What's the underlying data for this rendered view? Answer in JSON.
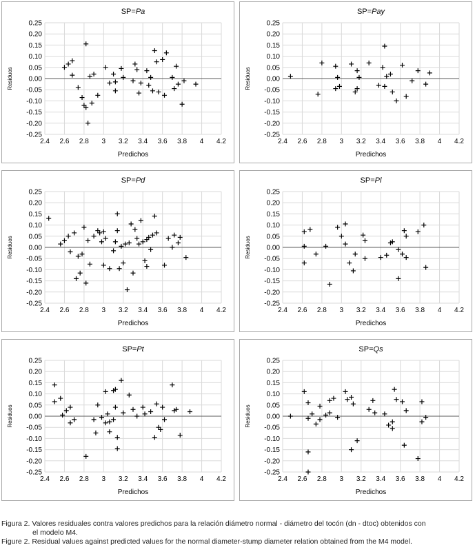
{
  "chart_data": [
    {
      "type": "scatter",
      "title_prefix": "SP=",
      "title_species": "Pa",
      "xlabel": "Predichos",
      "ylabel": "Residuos",
      "xlim": [
        2.4,
        4.2
      ],
      "ylim": [
        -0.25,
        0.25
      ],
      "xticks": [
        "2.4",
        "2.6",
        "2.8",
        "3",
        "3.2",
        "3.4",
        "3.6",
        "3.8",
        "4",
        "4.2"
      ],
      "yticks": [
        "0.25",
        "0.20",
        "0.15",
        "0.10",
        "0.05",
        "0.00",
        "-0.05",
        "-0.10",
        "-0.15",
        "-0.20",
        "-0.25"
      ],
      "points": [
        [
          2.6,
          0.05
        ],
        [
          2.64,
          0.065
        ],
        [
          2.68,
          0.08
        ],
        [
          2.68,
          0.015
        ],
        [
          2.74,
          -0.04
        ],
        [
          2.78,
          -0.085
        ],
        [
          2.8,
          -0.12
        ],
        [
          2.82,
          0.155
        ],
        [
          2.82,
          -0.13
        ],
        [
          2.84,
          -0.2
        ],
        [
          2.86,
          0.01
        ],
        [
          2.88,
          -0.11
        ],
        [
          2.9,
          0.02
        ],
        [
          2.94,
          -0.075
        ],
        [
          3.02,
          0.05
        ],
        [
          3.06,
          -0.02
        ],
        [
          3.1,
          0.02
        ],
        [
          3.12,
          -0.015
        ],
        [
          3.12,
          -0.055
        ],
        [
          3.18,
          0.045
        ],
        [
          3.2,
          0.005
        ],
        [
          3.3,
          -0.01
        ],
        [
          3.32,
          0.065
        ],
        [
          3.34,
          0.04
        ],
        [
          3.36,
          -0.065
        ],
        [
          3.38,
          -0.02
        ],
        [
          3.44,
          0.035
        ],
        [
          3.46,
          -0.03
        ],
        [
          3.48,
          0.005
        ],
        [
          3.5,
          -0.055
        ],
        [
          3.52,
          0.125
        ],
        [
          3.54,
          0.075
        ],
        [
          3.56,
          -0.06
        ],
        [
          3.6,
          0.085
        ],
        [
          3.62,
          -0.075
        ],
        [
          3.64,
          0.115
        ],
        [
          3.7,
          0.005
        ],
        [
          3.72,
          -0.045
        ],
        [
          3.74,
          0.055
        ],
        [
          3.76,
          -0.025
        ],
        [
          3.8,
          -0.115
        ],
        [
          3.82,
          -0.01
        ],
        [
          3.94,
          -0.025
        ]
      ]
    },
    {
      "type": "scatter",
      "title_prefix": "SP=",
      "title_species": "Pay",
      "xlabel": "Predichos",
      "ylabel": "Residuos",
      "xlim": [
        2.4,
        4.2
      ],
      "ylim": [
        -0.25,
        0.25
      ],
      "xticks": [
        "2.4",
        "2.6",
        "2.8",
        "3",
        "3.2",
        "3.4",
        "3.6",
        "3.8",
        "4",
        "4.2"
      ],
      "yticks": [
        "0.25",
        "0.20",
        "0.15",
        "0.10",
        "0.05",
        "0.00",
        "-0.05",
        "-0.10",
        "-0.15",
        "-0.20",
        "-0.25"
      ],
      "points": [
        [
          2.48,
          0.01
        ],
        [
          2.76,
          -0.07
        ],
        [
          2.8,
          0.07
        ],
        [
          2.94,
          -0.045
        ],
        [
          2.94,
          0.055
        ],
        [
          2.96,
          0.005
        ],
        [
          2.98,
          -0.035
        ],
        [
          3.1,
          0.065
        ],
        [
          3.14,
          -0.06
        ],
        [
          3.16,
          -0.045
        ],
        [
          3.16,
          0.035
        ],
        [
          3.18,
          0.005
        ],
        [
          3.28,
          0.07
        ],
        [
          3.38,
          -0.03
        ],
        [
          3.42,
          0.05
        ],
        [
          3.44,
          0.145
        ],
        [
          3.44,
          -0.035
        ],
        [
          3.46,
          0.01
        ],
        [
          3.5,
          0.02
        ],
        [
          3.52,
          -0.06
        ],
        [
          3.56,
          -0.1
        ],
        [
          3.62,
          0.06
        ],
        [
          3.66,
          -0.08
        ],
        [
          3.72,
          -0.01
        ],
        [
          3.78,
          0.035
        ],
        [
          3.86,
          -0.025
        ],
        [
          3.9,
          0.025
        ]
      ]
    },
    {
      "type": "scatter",
      "title_prefix": "SP=",
      "title_species": "Pd",
      "xlabel": "Predichos",
      "ylabel": "Residuos",
      "xlim": [
        2.4,
        4.2
      ],
      "ylim": [
        -0.25,
        0.25
      ],
      "xticks": [
        "2.4",
        "2.6",
        "2.8",
        "3",
        "3.2",
        "3.4",
        "3.6",
        "3.8",
        "4",
        "4.2"
      ],
      "yticks": [
        "0.25",
        "0.20",
        "0.15",
        "0.10",
        "0.05",
        "0.00",
        "-0.05",
        "-0.10",
        "-0.15",
        "-0.20",
        "-0.25"
      ],
      "points": [
        [
          2.44,
          0.13
        ],
        [
          2.56,
          0.015
        ],
        [
          2.6,
          0.03
        ],
        [
          2.64,
          0.05
        ],
        [
          2.66,
          -0.02
        ],
        [
          2.7,
          0.065
        ],
        [
          2.72,
          -0.14
        ],
        [
          2.74,
          -0.04
        ],
        [
          2.76,
          -0.115
        ],
        [
          2.78,
          -0.03
        ],
        [
          2.8,
          0.09
        ],
        [
          2.82,
          -0.16
        ],
        [
          2.84,
          0.03
        ],
        [
          2.86,
          -0.075
        ],
        [
          2.9,
          0.05
        ],
        [
          2.94,
          0.075
        ],
        [
          2.96,
          0.065
        ],
        [
          3.0,
          0.07
        ],
        [
          2.98,
          0.025
        ],
        [
          3.0,
          -0.08
        ],
        [
          3.02,
          0.04
        ],
        [
          3.06,
          -0.095
        ],
        [
          3.1,
          -0.015
        ],
        [
          3.12,
          0.025
        ],
        [
          3.14,
          0.075
        ],
        [
          3.14,
          0.15
        ],
        [
          3.16,
          -0.095
        ],
        [
          3.18,
          0.005
        ],
        [
          3.2,
          -0.07
        ],
        [
          3.22,
          0.015
        ],
        [
          3.24,
          -0.19
        ],
        [
          3.26,
          0.02
        ],
        [
          3.28,
          0.105
        ],
        [
          3.3,
          -0.115
        ],
        [
          3.32,
          0.08
        ],
        [
          3.34,
          0.04
        ],
        [
          3.36,
          0.015
        ],
        [
          3.38,
          0.12
        ],
        [
          3.4,
          0.025
        ],
        [
          3.42,
          -0.06
        ],
        [
          3.44,
          0.035
        ],
        [
          3.44,
          -0.085
        ],
        [
          3.46,
          0.045
        ],
        [
          3.48,
          -0.01
        ],
        [
          3.5,
          0.055
        ],
        [
          3.52,
          0.14
        ],
        [
          3.54,
          0.065
        ],
        [
          3.62,
          -0.08
        ],
        [
          3.66,
          0.04
        ],
        [
          3.7,
          0.0
        ],
        [
          3.72,
          0.055
        ],
        [
          3.76,
          0.02
        ],
        [
          3.78,
          0.045
        ],
        [
          3.84,
          -0.045
        ]
      ]
    },
    {
      "type": "scatter",
      "title_prefix": "SP=",
      "title_species": "Pl",
      "xlabel": "Predichos",
      "ylabel": "Residuos",
      "xlim": [
        2.4,
        4.2
      ],
      "ylim": [
        -0.25,
        0.25
      ],
      "xticks": [
        "2.4",
        "2.6",
        "2.8",
        "3",
        "3.2",
        "3.4",
        "3.6",
        "3.8",
        "4",
        "4.2"
      ],
      "yticks": [
        "0.25",
        "0.20",
        "0.15",
        "0.10",
        "0.05",
        "0.00",
        "-0.05",
        "-0.10",
        "-0.15",
        "-0.20",
        "-0.25"
      ],
      "points": [
        [
          2.62,
          0.07
        ],
        [
          2.62,
          0.005
        ],
        [
          2.62,
          -0.07
        ],
        [
          2.68,
          0.08
        ],
        [
          2.74,
          -0.03
        ],
        [
          2.84,
          0.005
        ],
        [
          2.88,
          -0.165
        ],
        [
          2.96,
          0.09
        ],
        [
          3.0,
          0.05
        ],
        [
          3.04,
          0.105
        ],
        [
          3.04,
          0.015
        ],
        [
          3.08,
          -0.07
        ],
        [
          3.12,
          -0.105
        ],
        [
          3.14,
          -0.03
        ],
        [
          3.22,
          0.055
        ],
        [
          3.24,
          0.03
        ],
        [
          3.24,
          -0.05
        ],
        [
          3.4,
          -0.045
        ],
        [
          3.46,
          -0.035
        ],
        [
          3.5,
          0.02
        ],
        [
          3.52,
          0.025
        ],
        [
          3.58,
          -0.01
        ],
        [
          3.58,
          -0.14
        ],
        [
          3.62,
          -0.03
        ],
        [
          3.64,
          0.075
        ],
        [
          3.66,
          0.05
        ],
        [
          3.66,
          -0.045
        ],
        [
          3.78,
          0.07
        ],
        [
          3.84,
          0.1
        ],
        [
          3.86,
          -0.09
        ]
      ]
    },
    {
      "type": "scatter",
      "title_prefix": "SP=",
      "title_species": "Pt",
      "xlabel": "Predichos",
      "ylabel": "Residuos",
      "xlim": [
        2.4,
        4.2
      ],
      "ylim": [
        -0.25,
        0.25
      ],
      "xticks": [
        "2.4",
        "2.6",
        "2.8",
        "3",
        "3.2",
        "3.4",
        "3.6",
        "3.8",
        "4",
        "4.2"
      ],
      "yticks": [
        "0.25",
        "0.20",
        "0.15",
        "0.10",
        "0.05",
        "0.00",
        "-0.05",
        "-0.10",
        "-0.15",
        "-0.20",
        "-0.25"
      ],
      "points": [
        [
          2.5,
          0.14
        ],
        [
          2.5,
          0.065
        ],
        [
          2.56,
          0.08
        ],
        [
          2.58,
          0.005
        ],
        [
          2.62,
          0.025
        ],
        [
          2.66,
          0.04
        ],
        [
          2.66,
          -0.03
        ],
        [
          2.7,
          -0.015
        ],
        [
          2.82,
          -0.18
        ],
        [
          2.9,
          -0.015
        ],
        [
          2.92,
          -0.075
        ],
        [
          2.94,
          0.05
        ],
        [
          2.98,
          -0.005
        ],
        [
          3.02,
          0.11
        ],
        [
          3.02,
          -0.03
        ],
        [
          3.04,
          0.01
        ],
        [
          3.06,
          -0.07
        ],
        [
          3.06,
          -0.025
        ],
        [
          3.1,
          -0.015
        ],
        [
          3.1,
          0.115
        ],
        [
          3.12,
          0.12
        ],
        [
          3.12,
          0.04
        ],
        [
          3.14,
          -0.095
        ],
        [
          3.14,
          -0.145
        ],
        [
          3.18,
          0.16
        ],
        [
          3.2,
          0.015
        ],
        [
          3.26,
          0.095
        ],
        [
          3.3,
          0.03
        ],
        [
          3.34,
          0.0
        ],
        [
          3.4,
          0.04
        ],
        [
          3.42,
          0.01
        ],
        [
          3.48,
          0.02
        ],
        [
          3.52,
          -0.095
        ],
        [
          3.54,
          0.055
        ],
        [
          3.56,
          -0.05
        ],
        [
          3.58,
          -0.06
        ],
        [
          3.6,
          0.04
        ],
        [
          3.62,
          -0.015
        ],
        [
          3.7,
          0.14
        ],
        [
          3.72,
          0.025
        ],
        [
          3.74,
          0.03
        ],
        [
          3.78,
          -0.085
        ],
        [
          3.88,
          0.02
        ]
      ]
    },
    {
      "type": "scatter",
      "title_prefix": "SP=",
      "title_species": "Qs",
      "xlabel": "Predichos",
      "ylabel": "Residuos",
      "xlim": [
        2.4,
        4.2
      ],
      "ylim": [
        -0.25,
        0.25
      ],
      "xticks": [
        "2.4",
        "2.6",
        "2.8",
        "3",
        "3.2",
        "3.4",
        "3.6",
        "3.8",
        "4",
        "4.2"
      ],
      "yticks": [
        "0.25",
        "0.20",
        "0.15",
        "0.10",
        "0.05",
        "0.00",
        "-0.05",
        "-0.10",
        "-0.15",
        "-0.20",
        "-0.25"
      ],
      "points": [
        [
          2.48,
          0.0
        ],
        [
          2.62,
          0.11
        ],
        [
          2.66,
          0.06
        ],
        [
          2.66,
          -0.01
        ],
        [
          2.66,
          -0.16
        ],
        [
          2.66,
          -0.25
        ],
        [
          2.7,
          0.01
        ],
        [
          2.74,
          -0.035
        ],
        [
          2.78,
          0.045
        ],
        [
          2.78,
          -0.015
        ],
        [
          2.84,
          0.005
        ],
        [
          2.88,
          0.07
        ],
        [
          2.88,
          0.015
        ],
        [
          2.92,
          0.08
        ],
        [
          2.96,
          -0.005
        ],
        [
          3.04,
          0.11
        ],
        [
          3.06,
          0.075
        ],
        [
          3.1,
          0.085
        ],
        [
          3.1,
          -0.15
        ],
        [
          3.12,
          0.055
        ],
        [
          3.16,
          -0.11
        ],
        [
          3.28,
          0.03
        ],
        [
          3.32,
          0.07
        ],
        [
          3.34,
          0.015
        ],
        [
          3.44,
          0.01
        ],
        [
          3.48,
          -0.04
        ],
        [
          3.52,
          -0.025
        ],
        [
          3.52,
          -0.055
        ],
        [
          3.54,
          0.12
        ],
        [
          3.56,
          0.075
        ],
        [
          3.62,
          0.065
        ],
        [
          3.64,
          -0.13
        ],
        [
          3.66,
          0.025
        ],
        [
          3.78,
          -0.19
        ],
        [
          3.82,
          0.065
        ],
        [
          3.82,
          -0.025
        ],
        [
          3.86,
          -0.005
        ]
      ]
    }
  ],
  "caption": {
    "es_line1": "Figura 2. Valores residuales contra valores predichos para la relación diámetro normal - diámetro del tocón (dn - dtoc) obtenidos con",
    "es_line2": "el modelo M4.",
    "en_line1": "Figure 2. Residual values against predicted values for the normal diameter-stump diameter relation obtained from the M4 model."
  }
}
